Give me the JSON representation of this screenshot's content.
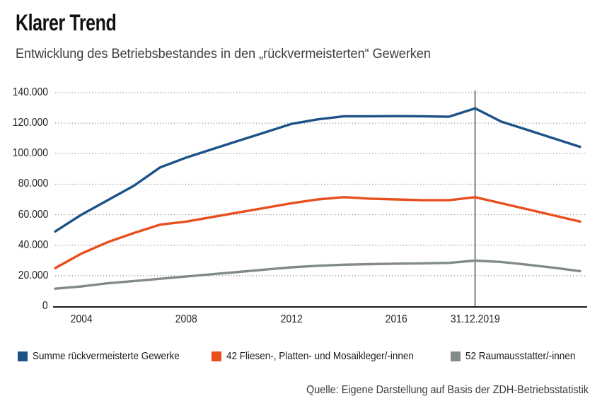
{
  "page": {
    "title": "Klarer Trend",
    "subtitle": "Entwicklung des Betriebsbestandes in den „rückvermeisterten“ Gewerken",
    "source": "Quelle: Eigene Darstellung auf Basis der ZDH-Betriebsstatistik"
  },
  "chart_data": {
    "type": "line",
    "title": "Klarer Trend",
    "subtitle": "Entwicklung des Betriebsbestandes in den „rückvermeisterten“ Gewerken",
    "x": [
      2003,
      2004,
      2005,
      2006,
      2007,
      2008,
      2009,
      2010,
      2011,
      2012,
      2013,
      2014,
      2015,
      2016,
      2017,
      2018,
      2019,
      2020,
      2021,
      2022,
      2023
    ],
    "xlim": [
      2003,
      2023
    ],
    "ylim": [
      0,
      140000
    ],
    "grid": "horizontal-dotted",
    "legend_position": "bottom",
    "y_ticks": [
      {
        "value": 0,
        "label": "0"
      },
      {
        "value": 20000,
        "label": "20.000"
      },
      {
        "value": 40000,
        "label": "40.000"
      },
      {
        "value": 60000,
        "label": "60.000"
      },
      {
        "value": 80000,
        "label": "80.000"
      },
      {
        "value": 100000,
        "label": "100.000"
      },
      {
        "value": 120000,
        "label": "120.000"
      },
      {
        "value": 140000,
        "label": "140.000"
      }
    ],
    "x_ticks": [
      {
        "year": 2004,
        "label": "2004"
      },
      {
        "year": 2008,
        "label": "2008"
      },
      {
        "year": 2012,
        "label": "2012"
      },
      {
        "year": 2016,
        "label": "2016"
      },
      {
        "year": 2019,
        "label": "31.12.2019"
      }
    ],
    "marker_line": {
      "year": 2019,
      "label": "31.12.2019",
      "color": "#6e6e6e"
    },
    "colors": {
      "grid": "#999999",
      "axis": "#1a1a1a"
    },
    "series": [
      {
        "name": "Summe rückvermeisterte Gewerke",
        "color": "#1c5288",
        "values": [
          49000,
          60000,
          69500,
          79000,
          91000,
          97500,
          103000,
          108500,
          114000,
          119500,
          122500,
          124500,
          124500,
          124600,
          124500,
          124200,
          129700,
          121000,
          115500,
          110000,
          104500
        ]
      },
      {
        "name": "42 Fliesen-, Platten- und Mosaikleger/-innen",
        "color": "#e84f1d",
        "values": [
          25000,
          34500,
          42000,
          48000,
          53500,
          55500,
          58500,
          61500,
          64500,
          67500,
          70000,
          71500,
          70500,
          70000,
          69500,
          69500,
          71500,
          67500,
          63500,
          59500,
          55500
        ]
      },
      {
        "name": "52 Raumausstatter/-innen",
        "color": "#828b86",
        "values": [
          11500,
          13000,
          15000,
          16500,
          18000,
          19500,
          21000,
          22500,
          24000,
          25500,
          26500,
          27200,
          27600,
          27900,
          28100,
          28400,
          29900,
          29000,
          27200,
          25200,
          23000
        ]
      }
    ]
  }
}
